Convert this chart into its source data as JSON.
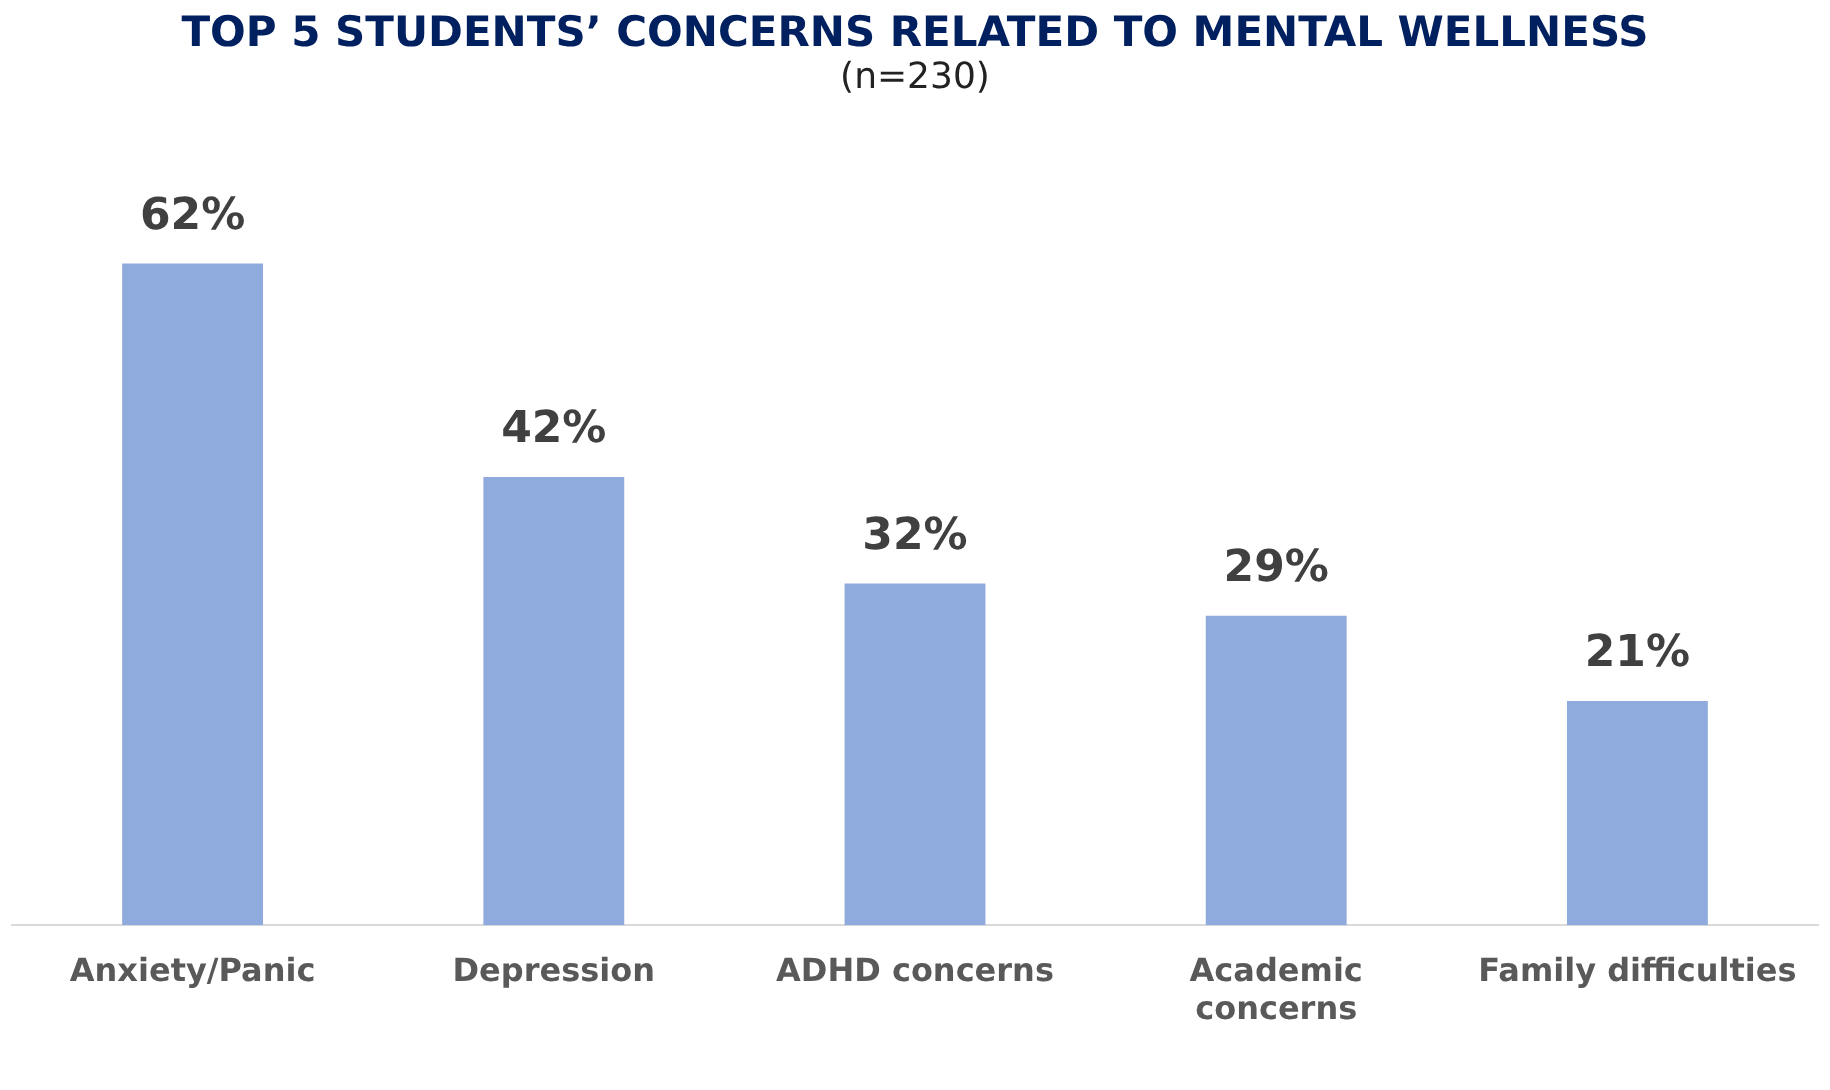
{
  "chart_data": {
    "type": "bar",
    "title": "TOP 5 STUDENTS’ CONCERNS RELATED TO MENTAL WELLNESS",
    "subtitle": "(n=230)",
    "categories": [
      "Anxiety/Panic",
      "Depression",
      "ADHD concerns",
      "Academic concerns",
      "Family difficulties"
    ],
    "values": [
      62,
      42,
      32,
      29,
      21
    ],
    "color": "#8faadc",
    "data_labels": true,
    "value_labels": [
      "62%",
      "42%",
      "32%",
      "29%",
      "21%"
    ],
    "grid": false,
    "legend": false,
    "tick_labels": "x"
  }
}
